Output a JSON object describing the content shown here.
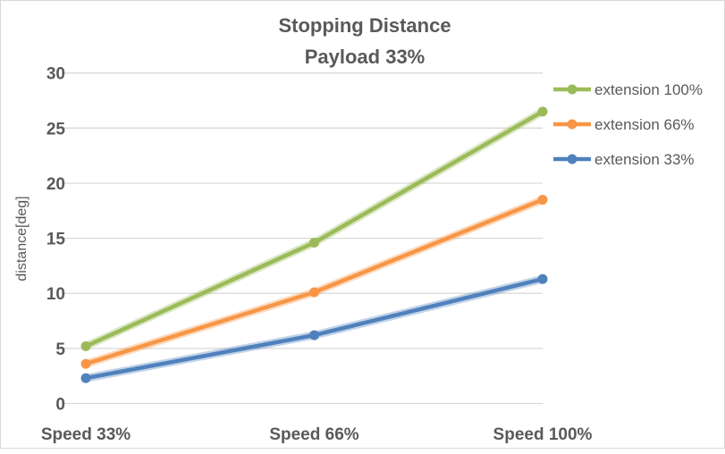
{
  "chart_data": {
    "type": "line",
    "title": "Stopping Distance",
    "subtitle": "Payload 33%",
    "xlabel": "",
    "ylabel": "distance[deg]",
    "ylim": [
      0,
      30
    ],
    "yticks": [
      0,
      5,
      10,
      15,
      20,
      25,
      30
    ],
    "grid": true,
    "legend": "right",
    "categories": [
      "Speed 33%",
      "Speed 66%",
      "Speed 100%"
    ],
    "series": [
      {
        "name": "extension 100%",
        "color": "#9bbb59",
        "values": [
          5.2,
          14.6,
          26.5
        ]
      },
      {
        "name": "extension 66%",
        "color": "#f79646",
        "values": [
          3.6,
          10.1,
          18.5
        ]
      },
      {
        "name": "extension 33%",
        "color": "#4f81bd",
        "values": [
          2.3,
          6.2,
          11.3
        ]
      }
    ]
  }
}
